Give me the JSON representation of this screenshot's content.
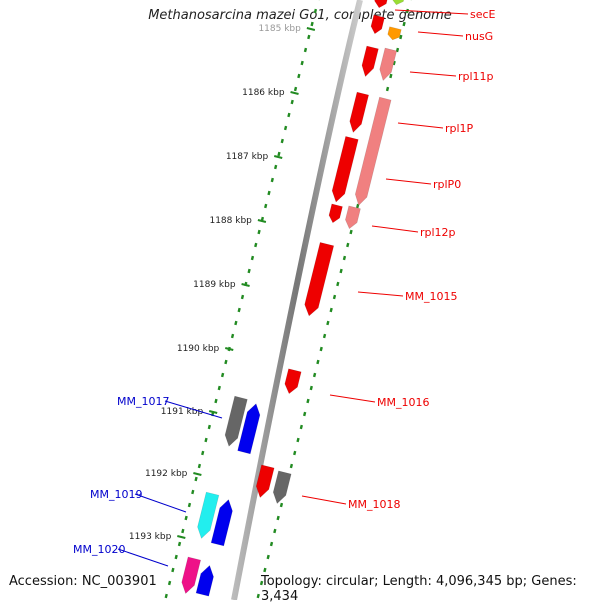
{
  "title": "Methanosarcina mazei Go1, complete genome",
  "accession": "Accession: NC_003901",
  "topology": "Topology: circular; Length: 4,096,345 bp; Genes: 3,434",
  "colors": {
    "backbone": "#999999",
    "tick": "#228B22",
    "label_right": "#ee0000",
    "label_left": "#0000cc",
    "tick_text": "#222222"
  },
  "kbp_ticks": [
    "1185 kbp",
    "1186 kbp",
    "1187 kbp",
    "1188 kbp",
    "1189 kbp",
    "1190 kbp",
    "1191 kbp",
    "1192 kbp",
    "1193 kbp"
  ],
  "right_labels": [
    "secE",
    "nusG",
    "rpl11p",
    "rpl1P",
    "rplP0",
    "rpl12p",
    "MM_1015",
    "MM_1016",
    "MM_1018"
  ],
  "left_labels": [
    "MM_1017",
    "MM_1019",
    "MM_1020"
  ]
}
